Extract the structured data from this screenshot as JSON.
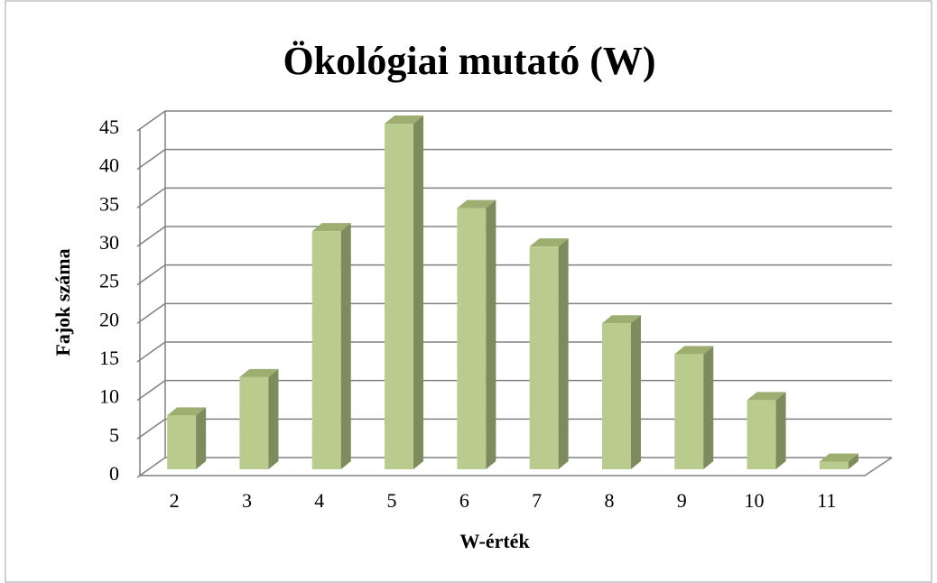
{
  "chart_data": {
    "type": "bar3d",
    "title": "Ökológiai mutató (W)",
    "x_label": "W-érték",
    "y_label": "Fajok száma",
    "categories": [
      "2",
      "3",
      "4",
      "5",
      "6",
      "7",
      "8",
      "9",
      "10",
      "11"
    ],
    "values": [
      7,
      12,
      31,
      45,
      34,
      29,
      19,
      15,
      9,
      1
    ],
    "color": "#b9cc8e",
    "ylim": [
      0,
      45
    ],
    "yticks": [
      0,
      5,
      10,
      15,
      20,
      25,
      30,
      35,
      40,
      45
    ],
    "grid": true
  }
}
